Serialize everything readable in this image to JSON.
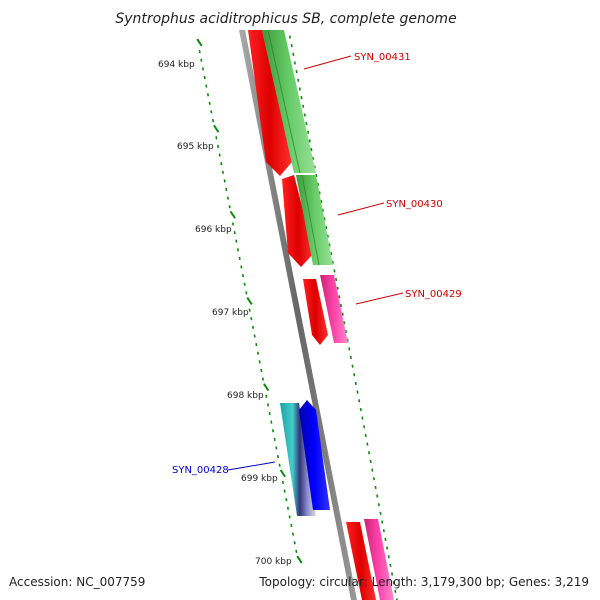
{
  "title": "Syntrophus aciditrophicus SB, complete genome",
  "footer": {
    "accession": "Accession: NC_007759",
    "summary": "Topology: circular; Length: 3,179,300 bp; Genes: 3,219"
  },
  "scale_labels": [
    "694 kbp",
    "695 kbp",
    "696 kbp",
    "697 kbp",
    "698 kbp",
    "699 kbp",
    "700 kbp"
  ],
  "gene_labels": [
    {
      "text": "SYN_00431",
      "color": "#cc0000"
    },
    {
      "text": "SYN_00430",
      "color": "#cc0000"
    },
    {
      "text": "SYN_00429",
      "color": "#cc0000"
    },
    {
      "text": "SYN_00428",
      "color": "#0000cc"
    }
  ],
  "colors": {
    "backbone": "#888888",
    "cds_red": "#ee0000",
    "gene_green": "#44bb44",
    "gene_pink": "#ee3399",
    "gene_blue": "#0000ee",
    "gene_cyan": "#22bbbb",
    "tick_green": "#118811"
  }
}
